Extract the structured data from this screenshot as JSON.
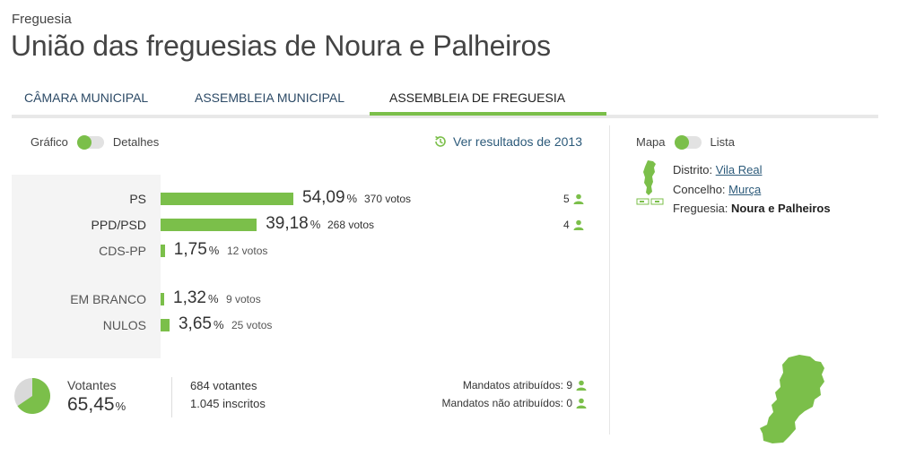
{
  "header": {
    "eyebrow": "Freguesia",
    "title": "União das freguesias de Noura e Palheiros"
  },
  "tabs": [
    {
      "label": "CÂMARA MUNICIPAL",
      "active": false
    },
    {
      "label": "ASSEMBLEIA MUNICIPAL",
      "active": false
    },
    {
      "label": "ASSEMBLEIA DE FREGUESIA",
      "active": true
    }
  ],
  "view_toggle": {
    "left": "Gráfico",
    "right": "Detalhes"
  },
  "map_toggle": {
    "left": "Mapa",
    "right": "Lista"
  },
  "previous_results_link": "Ver resultados de 2013",
  "accent_color": "#7bbf4a",
  "results": [
    {
      "party": "PS",
      "percent": "54,09",
      "percent_value": 54.09,
      "votes": "370 votos",
      "seats": "5",
      "emphasis": true
    },
    {
      "party": "PPD/PSD",
      "percent": "39,18",
      "percent_value": 39.18,
      "votes": "268 votos",
      "seats": "4",
      "emphasis": true
    },
    {
      "party": "CDS-PP",
      "percent": "1,75",
      "percent_value": 1.75,
      "votes": "12 votos",
      "seats": null,
      "emphasis": false
    }
  ],
  "other_results": [
    {
      "party": "EM BRANCO",
      "percent": "1,32",
      "percent_value": 1.32,
      "votes": "9 votos"
    },
    {
      "party": "NULOS",
      "percent": "3,65",
      "percent_value": 3.65,
      "votes": "25 votos"
    }
  ],
  "percent_symbol": "%",
  "turnout": {
    "label": "Votantes",
    "value": "65,45",
    "fraction": 0.6545,
    "voters": "684 votantes",
    "registered": "1.045 inscritos",
    "mandates_assigned_label": "Mandatos atribuídos:",
    "mandates_assigned": "9",
    "mandates_unassigned_label": "Mandatos não atribuídos:",
    "mandates_unassigned": "0"
  },
  "region": {
    "district_label": "Distrito:",
    "district": "Vila Real",
    "municipality_label": "Concelho:",
    "municipality": "Murça",
    "parish_label": "Freguesia:",
    "parish": "Noura e Palheiros"
  }
}
